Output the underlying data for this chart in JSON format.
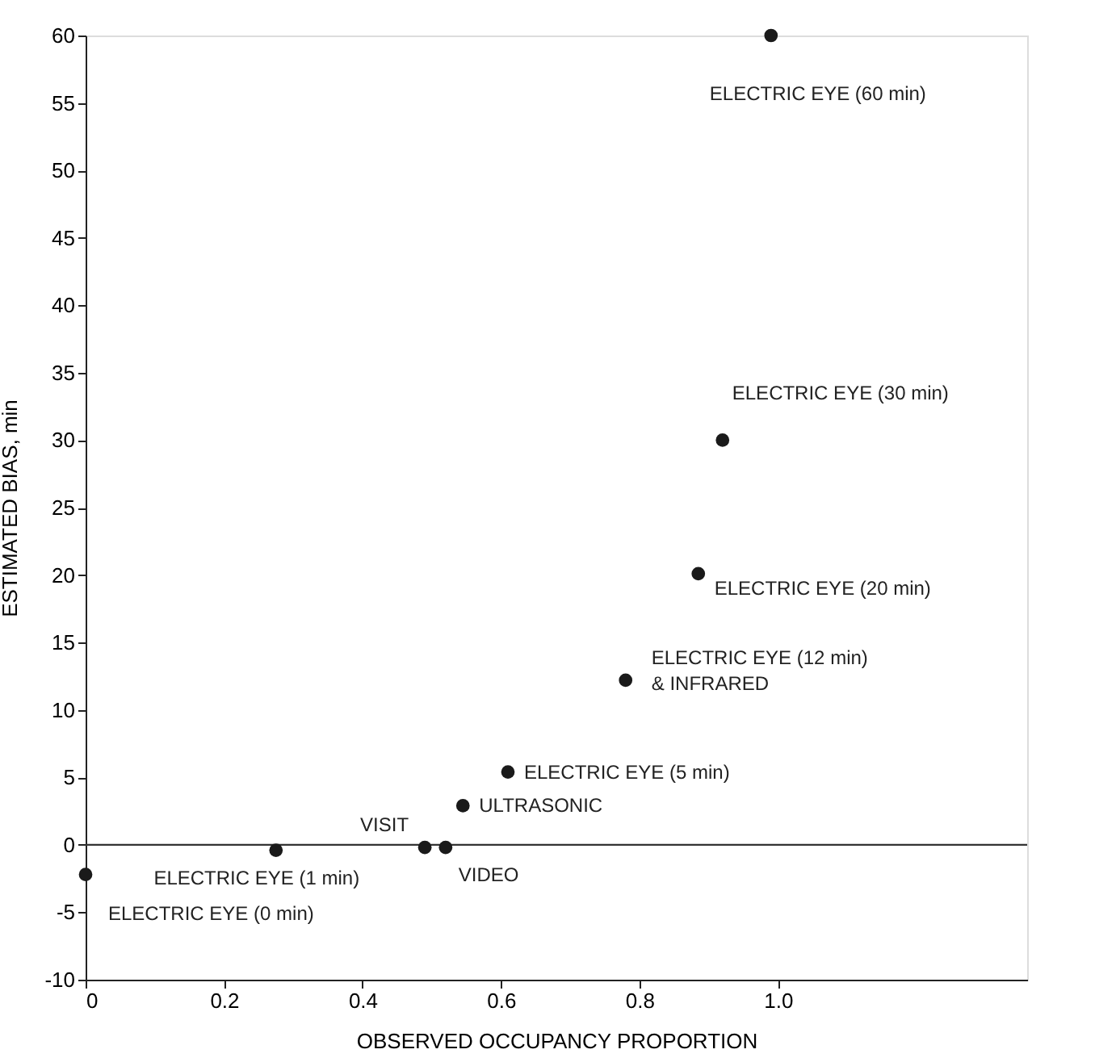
{
  "chart_data": {
    "type": "scatter",
    "xlabel": "OBSERVED OCCUPANCY PROPORTION",
    "ylabel": "ESTIMATED BIAS, min",
    "x": [
      0,
      0.275,
      0.49,
      0.52,
      0.545,
      0.61,
      0.78,
      0.885,
      0.92,
      0.99
    ],
    "series": [
      {
        "color": "#1a1a1a",
        "values": [
          -2.2,
          -0.4,
          -0.2,
          -0.2,
          2.9,
          5.4,
          12.2,
          20.1,
          30.0,
          60.0
        ]
      }
    ],
    "marker": "circle",
    "xlim": [
      0,
      1.36
    ],
    "xticks": [
      0,
      0.2,
      0.4,
      0.6,
      0.8,
      {
        "value": 1.0,
        "label": "1.0"
      }
    ],
    "ylim": [
      -10,
      60
    ],
    "yticks": [
      -10,
      -5,
      0,
      5,
      10,
      15,
      20,
      25,
      30,
      35,
      40,
      45,
      50,
      55,
      60
    ],
    "grid": false,
    "ref_lines": [
      {
        "axis": "y",
        "value": 0,
        "color": "#333333"
      }
    ],
    "annotations": [
      {
        "text": "ELECTRIC EYE  (0 min)",
        "x": 0,
        "y": -2.2
      },
      {
        "text": "ELECTRIC EYE (1 min)",
        "x": 0.275,
        "y": -0.4
      },
      {
        "text": "VISIT",
        "x": 0.49,
        "y": -0.2
      },
      {
        "text": "VIDEO",
        "x": 0.52,
        "y": -0.2
      },
      {
        "text": "ULTRASONIC",
        "x": 0.545,
        "y": 2.9
      },
      {
        "text": "ELECTRIC EYE  (5 min)",
        "x": 0.61,
        "y": 5.4
      },
      {
        "text": "ELECTRIC EYE  (12 min)\n& INFRARED",
        "x": 0.78,
        "y": 12.2
      },
      {
        "text": "ELECTRIC EYE  (20 min)",
        "x": 0.885,
        "y": 20.1
      },
      {
        "text": "ELECTRIC EYE  (30 min)",
        "x": 0.92,
        "y": 30.0
      },
      {
        "text": "ELECTRIC EYE  (60 min)",
        "x": 0.99,
        "y": 60.0
      }
    ]
  }
}
